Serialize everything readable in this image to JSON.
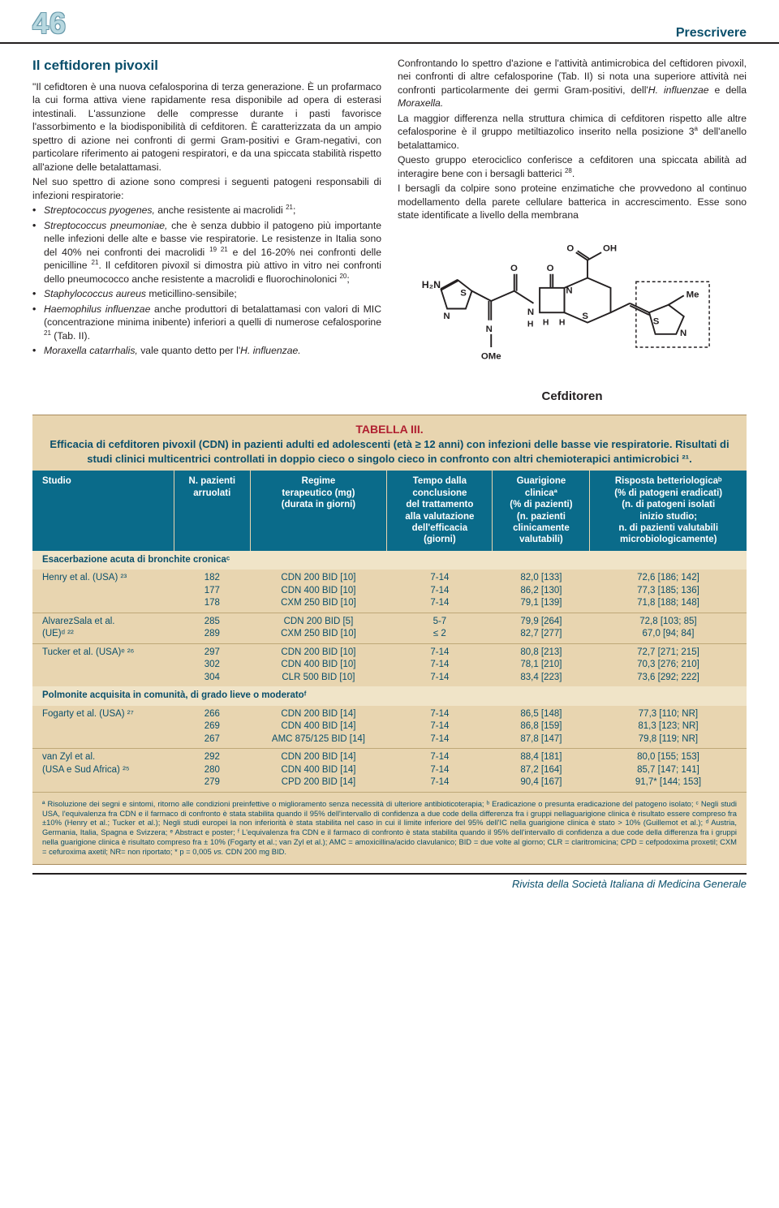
{
  "page_number": "46",
  "section_label": "Prescrivere",
  "article": {
    "title": "Il ceftidoren pivoxil",
    "col1_paragraphs": [
      "\"Il cefidtoren è una nuova cefalosporina di terza generazione. È un profarmaco la cui forma attiva viene rapidamente resa disponibile ad opera di esterasi intestinali. L'assunzione delle compresse durante i pasti favorisce l'assorbimento e la biodisponibilità di cefditoren. È caratterizzata da un ampio spettro di azione nei confronti di germi Gram-positivi e Gram-negativi, con particolare riferimento ai patogeni respiratori, e da una spiccata stabilità rispetto all'azione delle betalattamasi.",
      "Nel suo spettro di azione sono compresi i seguenti patogeni responsabili di infezioni respiratorie:"
    ],
    "bullets": [
      "<em>Streptococcus pyogenes,</em> anche resistente ai macrolidi <sup>21</sup>;",
      "<em>Streptococcus pneumoniae,</em> che è senza dubbio il patogeno più importante nelle infezioni delle alte e basse vie respiratorie. Le resistenze in Italia sono del 40% nei confronti dei macrolidi <sup>19 21</sup> e del 16-20% nei confronti delle penicilline <sup>21</sup>. Il cefditoren pivoxil si dimostra più attivo in vitro nei confronti dello pneumococco anche resistente a macrolidi e fluorochinolonici <sup>20</sup>;",
      "<em>Staphylococcus aureus</em> meticillino-sensibile;",
      "<em>Haemophilus influenzae</em> anche produttori di betalattamasi con valori di MIC (concentrazione minima inibente) inferiori a quelli di numerose cefalosporine <sup>21</sup> (Tab. II).",
      "<em>Moraxella catarrhalis,</em> vale quanto detto per l'<em>H. influenzae.</em>"
    ],
    "col2_paragraphs": [
      "Confrontando lo spettro d'azione e l'attività antimicrobica del ceftidoren pivoxil, nei confronti di altre cefalosporine (Tab. II) si nota una superiore attività nei confronti particolarmente dei germi Gram-positivi, dell'<em>H. influenzae</em> e della <em>Moraxella.</em>",
      "La maggior differenza nella struttura chimica di cefditoren rispetto alle altre cefalosporine è il gruppo metiltiazolico inserito nella posizione 3<sup>a</sup> dell'anello betalattamico.",
      "Questo gruppo eterociclico conferisce a cefditoren una spiccata abilità ad interagire bene con i bersagli batterici <sup>28</sup>.",
      "I bersagli da colpire sono proteine enzimatiche che provvedono al continuo modellamento della parete cellulare batterica in accrescimento. Esse sono state identificate a livello della membrana"
    ],
    "molecule_label": "Cefditoren"
  },
  "table": {
    "heading_line1": "TABELLA III.",
    "heading_rest": "Efficacia di cefditoren pivoxil (CDN) in pazienti adulti ed adolescenti (età ≥ 12 anni) con infezioni delle basse vie respiratorie. Risultati di studi clinici multicentrici controllati in doppio cieco o singolo cieco in confronto con altri chemioterapici antimicrobici ²¹.",
    "columns": [
      "Studio",
      "N. pazienti\narruolati",
      "Regime\nterapeutico (mg)\n(durata in giorni)",
      "Tempo dalla\nconclusione\ndel trattamento\nalla valutazione\ndell'efficacia\n(giorni)",
      "Guarigione\nclinicaª\n(% di pazienti)\n(n. pazienti\nclinicamente\nvalutabili)",
      "Risposta betteriologicaᵇ\n(% di patogeni eradicati)\n(n. di patogeni isolati\ninizio studio;\nn. di pazienti valutabili\nmicrobiologicamente)"
    ],
    "sub1": "Esacerbazione acuta di bronchite cronicaᶜ",
    "rows1": [
      [
        "Henry et al. (USA) ²³",
        "182\n177\n178",
        "CDN 200 BID [10]\nCDN 400 BID [10]\nCXM 250 BID [10]",
        "7-14\n7-14\n7-14",
        "82,0 [133]\n86,2 [130]\n79,1 [139]",
        "72,6 [186; 142]\n77,3 [185; 136]\n71,8 [188; 148]"
      ],
      [
        "AlvarezSala et al.\n(UE)ᵈ ²²",
        "285\n289",
        "CDN 200 BID [5]\nCXM 250 BID [10]",
        "5-7\n≤ 2",
        "79,9 [264]\n82,7 [277]",
        "72,8 [103; 85]\n67,0 [94; 84]"
      ],
      [
        "Tucker et al. (USA)ᵉ ²⁶",
        "297\n302\n304",
        "CDN 200 BID [10]\nCDN 400 BID [10]\nCLR 500 BID [10]",
        "7-14\n7-14\n7-14",
        "80,8 [213]\n78,1 [210]\n83,4 [223]",
        "72,7 [271; 215]\n70,3 [276; 210]\n73,6 [292; 222]"
      ]
    ],
    "sub2": "Polmonite acquisita in comunità, di grado lieve o moderatoᶠ",
    "rows2": [
      [
        "Fogarty et al. (USA) ²⁷",
        "266\n269\n267",
        "CDN 200 BID [14]\nCDN 400 BID [14]\nAMC 875/125 BID [14]",
        "7-14\n7-14\n7-14",
        "86,5 [148]\n86,8 [159]\n87,8 [147]",
        "77,3 [110; NR]\n81,3 [123; NR]\n79,8 [119; NR]"
      ],
      [
        "van Zyl et al.\n(USA e Sud Africa) ²⁵",
        "292\n280\n279",
        "CDN 200 BID [14]\nCDN 400 BID [14]\nCPD 200 BID [14]",
        "7-14\n7-14\n7-14",
        "88,4 [181]\n87,2 [164]\n90,4 [167]",
        "80,0 [155; 153]\n85,7 [147; 141]\n91,7* [144; 153]"
      ]
    ],
    "footnotes": "ª Risoluzione dei segni e sintomi, ritorno alle condizioni preinfettive o miglioramento senza necessità di ulteriore antibioticoterapia; ᵇ Eradicazione o presunta eradicazione del patogeno isolato; ᶜ Negli studi USA, l'equivalenza fra CDN e il farmaco di confronto è stata stabilita quando il 95% dell'intervallo di confidenza a due code della differenza fra i gruppi nellaguarigione clinica è risultato essere compreso fra ±10% (Henry et al.; Tucker et al.); Negli studi europei la non inferiorità è stata stabilita nel caso in cui il limite inferiore del 95% dell'IC nella guarigione clinica è stato > 10% (Guillemot et al.); ᵈ Austria, Germania, Italia, Spagna e Svizzera; ᵉ Abstract e poster; ᶠ L'equivalenza fra CDN e il farmaco di confronto è stata stabilita quando il 95% dell'intervallo di confidenza a due code della differenza fra i gruppi nella guarigione clinica è risultato compreso fra ± 10% (Fogarty et al.; van Zyl et al.); AMC = amoxicillina/acido clavulanico; BID = due volte al giorno; CLR = claritromicina; CPD = cefpodoxima proxetil; CXM = cefuroxima axetil; NR= non riportato; * p = 0,005 <em>vs.</em> CDN 200 mg BID."
  },
  "footer": "Rivista della Società Italiana di Medicina Generale",
  "colors": {
    "header_blue": "#0a4f6b",
    "table_header_bg": "#0a6b8a",
    "table_bg": "#e8d5b0"
  }
}
